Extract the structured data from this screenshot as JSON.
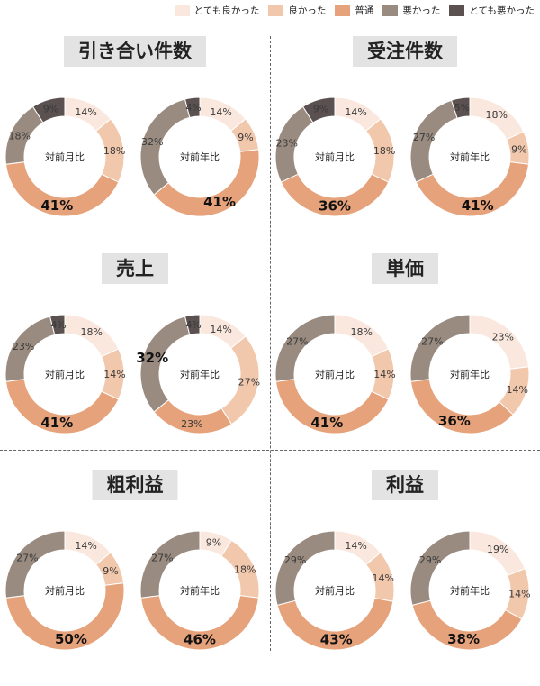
{
  "legend": [
    {
      "label": "とても良かった",
      "color": "#fae8de"
    },
    {
      "label": "良かった",
      "color": "#f2c8ad"
    },
    {
      "label": "普通",
      "color": "#e6a27a"
    },
    {
      "label": "悪かった",
      "color": "#9a8b80"
    },
    {
      "label": "とても悪かった",
      "color": "#5a5150"
    }
  ],
  "center_labels": {
    "mom": "対前月比",
    "yoy": "対前年比"
  },
  "chart_data": [
    {
      "type": "pie",
      "title": "引き合い件数",
      "charts": [
        {
          "name": "対前月比",
          "values": [
            14,
            18,
            41,
            18,
            9
          ]
        },
        {
          "name": "対前年比",
          "values": [
            14,
            9,
            41,
            32,
            4
          ]
        }
      ]
    },
    {
      "type": "pie",
      "title": "受注件数",
      "charts": [
        {
          "name": "対前月比",
          "values": [
            14,
            18,
            36,
            23,
            9
          ]
        },
        {
          "name": "対前年比",
          "values": [
            18,
            9,
            41,
            27,
            5
          ]
        }
      ]
    },
    {
      "type": "pie",
      "title": "売上",
      "charts": [
        {
          "name": "対前月比",
          "values": [
            18,
            14,
            41,
            23,
            4
          ]
        },
        {
          "name": "対前年比",
          "values": [
            14,
            27,
            23,
            32,
            4
          ]
        }
      ]
    },
    {
      "type": "pie",
      "title": "単価",
      "charts": [
        {
          "name": "対前月比",
          "values": [
            18,
            14,
            41,
            27,
            0
          ]
        },
        {
          "name": "対前年比",
          "values": [
            23,
            14,
            36,
            27,
            0
          ]
        }
      ]
    },
    {
      "type": "pie",
      "title": "粗利益",
      "charts": [
        {
          "name": "対前月比",
          "values": [
            14,
            9,
            50,
            27,
            0
          ]
        },
        {
          "name": "対前年比",
          "values": [
            9,
            18,
            46,
            27,
            0
          ]
        }
      ]
    },
    {
      "type": "pie",
      "title": "利益",
      "charts": [
        {
          "name": "対前月比",
          "values": [
            14,
            14,
            43,
            29,
            0
          ]
        },
        {
          "name": "対前年比",
          "values": [
            19,
            14,
            38,
            29,
            0
          ]
        }
      ]
    }
  ]
}
